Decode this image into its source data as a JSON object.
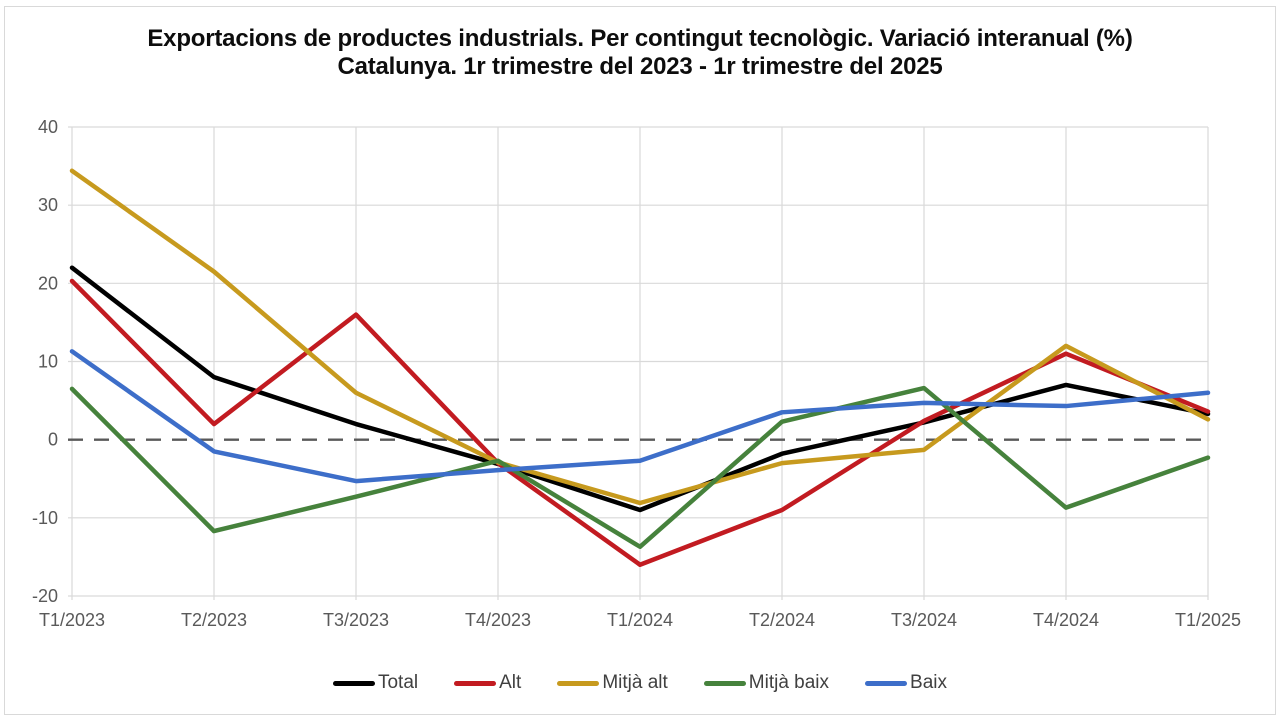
{
  "title": {
    "line1": "Exportacions de productes industrials. Per contingut tecnològic. Variació interanual (%)",
    "line2": "Catalunya. 1r trimestre del 2023 - 1r trimestre del 2025"
  },
  "chart_data": {
    "type": "line",
    "categories": [
      "T1/2023",
      "T2/2023",
      "T3/2023",
      "T4/2023",
      "T1/2024",
      "T2/2024",
      "T3/2024",
      "T4/2024",
      "T1/2025"
    ],
    "series": [
      {
        "name": "Total",
        "color": "#000000",
        "values": [
          22.0,
          8.0,
          2.0,
          -3.1,
          -9.0,
          -1.8,
          2.2,
          7.0,
          3.3
        ]
      },
      {
        "name": "Alt",
        "color": "#c21b21",
        "values": [
          20.3,
          2.0,
          16.0,
          -3.0,
          -16.0,
          -9.0,
          2.4,
          11.0,
          3.6
        ]
      },
      {
        "name": "Mitjà alt",
        "color": "#c79a1e",
        "values": [
          34.4,
          21.5,
          6.0,
          -2.9,
          -8.1,
          -3.0,
          -1.3,
          12.0,
          2.6
        ]
      },
      {
        "name": "Mitjà baix",
        "color": "#46823c",
        "values": [
          6.5,
          -11.7,
          -7.3,
          -2.7,
          -13.7,
          2.3,
          6.6,
          -8.7,
          -2.3
        ]
      },
      {
        "name": "Baix",
        "color": "#3d6ec9",
        "values": [
          11.3,
          -1.5,
          -5.3,
          -3.9,
          -2.7,
          3.5,
          4.7,
          4.3,
          6.0
        ]
      }
    ],
    "title": "Exportacions de productes industrials. Per contingut tecnològic. Variació interanual (%) Catalunya. 1r trimestre del 2023 - 1r trimestre del 2025",
    "xlabel": "",
    "ylabel": "",
    "ylim": [
      -20,
      40
    ],
    "y_ticks": [
      40,
      30,
      20,
      10,
      0,
      -10,
      -20
    ],
    "grid": "both",
    "zero_line": "dashed",
    "legend_position": "bottom"
  },
  "colors": {
    "background": "#ffffff",
    "frame_border": "#d9d9d9",
    "gridline": "#d9d9d9",
    "zero_line": "#595959",
    "axis_text": "#595959",
    "title_text": "#0d0d0d",
    "legend_text": "#404040"
  }
}
